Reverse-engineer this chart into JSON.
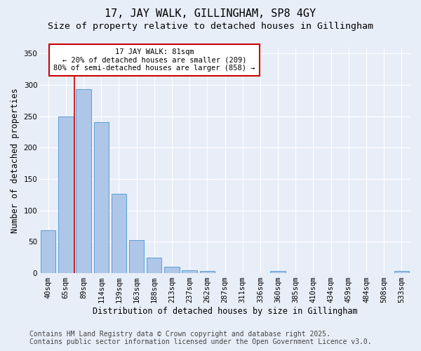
{
  "title_line1": "17, JAY WALK, GILLINGHAM, SP8 4GY",
  "title_line2": "Size of property relative to detached houses in Gillingham",
  "xlabel": "Distribution of detached houses by size in Gillingham",
  "ylabel": "Number of detached properties",
  "categories": [
    "40sqm",
    "65sqm",
    "89sqm",
    "114sqm",
    "139sqm",
    "163sqm",
    "188sqm",
    "213sqm",
    "237sqm",
    "262sqm",
    "287sqm",
    "311sqm",
    "336sqm",
    "360sqm",
    "385sqm",
    "410sqm",
    "434sqm",
    "459sqm",
    "484sqm",
    "508sqm",
    "533sqm"
  ],
  "values": [
    68,
    250,
    293,
    241,
    127,
    53,
    25,
    10,
    5,
    4,
    0,
    0,
    0,
    3,
    0,
    0,
    0,
    0,
    0,
    0,
    4
  ],
  "bar_color": "#aec6e8",
  "bar_edge_color": "#5a9fd4",
  "red_line_x": 1.5,
  "annotation_title": "17 JAY WALK: 81sqm",
  "annotation_line1": "← 20% of detached houses are smaller (209)",
  "annotation_line2": "80% of semi-detached houses are larger (858) →",
  "footer_line1": "Contains HM Land Registry data © Crown copyright and database right 2025.",
  "footer_line2": "Contains public sector information licensed under the Open Government Licence v3.0.",
  "ylim": [
    0,
    360
  ],
  "yticks": [
    0,
    50,
    100,
    150,
    200,
    250,
    300,
    350
  ],
  "bg_color": "#e8eef8",
  "grid_color": "#ffffff",
  "title1_fontsize": 11,
  "title2_fontsize": 9.5,
  "xlabel_fontsize": 8.5,
  "ylabel_fontsize": 8.5,
  "tick_fontsize": 7.5,
  "annot_fontsize": 7.5,
  "footer_fontsize": 7
}
